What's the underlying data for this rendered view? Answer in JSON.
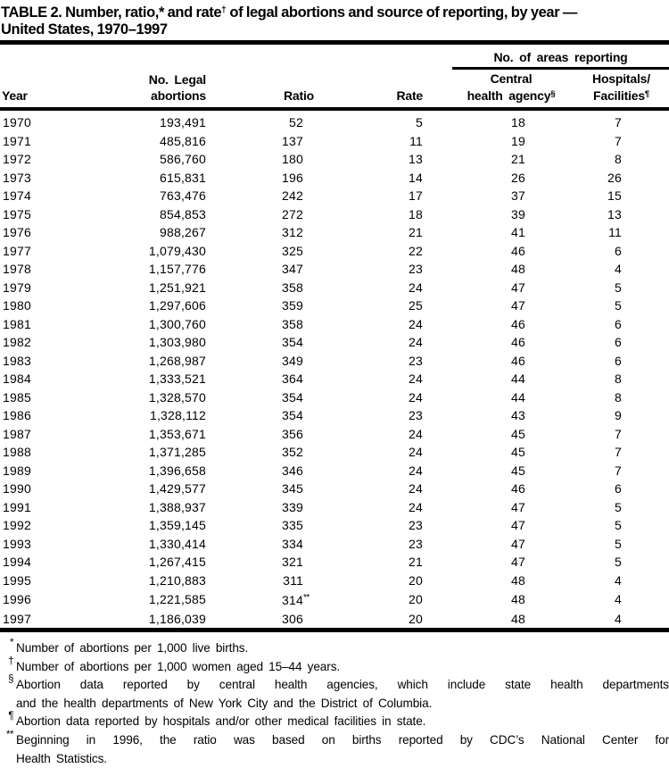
{
  "colors": {
    "text": "#000000",
    "background": "#ffffff",
    "rule": "#000000"
  },
  "title": {
    "part1": "TABLE 2. Number, ratio,* and rate",
    "part1_sup": "†",
    "part2": " of legal abortions and source of reporting, by year —",
    "line2": "United States, 1970–1997"
  },
  "table": {
    "spanner": "No. of areas reporting",
    "headers": {
      "year": "Year",
      "abortions": [
        "No. Legal",
        "abortions"
      ],
      "ratio": "Ratio",
      "rate": "Rate",
      "central": [
        "Central",
        "health agency"
      ],
      "central_sup": "§",
      "hospitals": [
        "Hospitals/",
        "Facilities"
      ],
      "hospitals_sup": "¶"
    },
    "rows": [
      {
        "year": "1970",
        "abortions": "193,491",
        "ratio": "52",
        "rate": "5",
        "central": "18",
        "hospitals": "7"
      },
      {
        "year": "1971",
        "abortions": "485,816",
        "ratio": "137",
        "rate": "11",
        "central": "19",
        "hospitals": "7"
      },
      {
        "year": "1972",
        "abortions": "586,760",
        "ratio": "180",
        "rate": "13",
        "central": "21",
        "hospitals": "8"
      },
      {
        "year": "1973",
        "abortions": "615,831",
        "ratio": "196",
        "rate": "14",
        "central": "26",
        "hospitals": "26"
      },
      {
        "year": "1974",
        "abortions": "763,476",
        "ratio": "242",
        "rate": "17",
        "central": "37",
        "hospitals": "15"
      },
      {
        "year": "1975",
        "abortions": "854,853",
        "ratio": "272",
        "rate": "18",
        "central": "39",
        "hospitals": "13"
      },
      {
        "year": "1976",
        "abortions": "988,267",
        "ratio": "312",
        "rate": "21",
        "central": "41",
        "hospitals": "11"
      },
      {
        "year": "1977",
        "abortions": "1,079,430",
        "ratio": "325",
        "rate": "22",
        "central": "46",
        "hospitals": "6"
      },
      {
        "year": "1978",
        "abortions": "1,157,776",
        "ratio": "347",
        "rate": "23",
        "central": "48",
        "hospitals": "4"
      },
      {
        "year": "1979",
        "abortions": "1,251,921",
        "ratio": "358",
        "rate": "24",
        "central": "47",
        "hospitals": "5"
      },
      {
        "year": "1980",
        "abortions": "1,297,606",
        "ratio": "359",
        "rate": "25",
        "central": "47",
        "hospitals": "5"
      },
      {
        "year": "1981",
        "abortions": "1,300,760",
        "ratio": "358",
        "rate": "24",
        "central": "46",
        "hospitals": "6"
      },
      {
        "year": "1982",
        "abortions": "1,303,980",
        "ratio": "354",
        "rate": "24",
        "central": "46",
        "hospitals": "6"
      },
      {
        "year": "1983",
        "abortions": "1,268,987",
        "ratio": "349",
        "rate": "23",
        "central": "46",
        "hospitals": "6"
      },
      {
        "year": "1984",
        "abortions": "1,333,521",
        "ratio": "364",
        "rate": "24",
        "central": "44",
        "hospitals": "8"
      },
      {
        "year": "1985",
        "abortions": "1,328,570",
        "ratio": "354",
        "rate": "24",
        "central": "44",
        "hospitals": "8"
      },
      {
        "year": "1986",
        "abortions": "1,328,112",
        "ratio": "354",
        "rate": "23",
        "central": "43",
        "hospitals": "9"
      },
      {
        "year": "1987",
        "abortions": "1,353,671",
        "ratio": "356",
        "rate": "24",
        "central": "45",
        "hospitals": "7"
      },
      {
        "year": "1988",
        "abortions": "1,371,285",
        "ratio": "352",
        "rate": "24",
        "central": "45",
        "hospitals": "7"
      },
      {
        "year": "1989",
        "abortions": "1,396,658",
        "ratio": "346",
        "rate": "24",
        "central": "45",
        "hospitals": "7"
      },
      {
        "year": "1990",
        "abortions": "1,429,577",
        "ratio": "345",
        "rate": "24",
        "central": "46",
        "hospitals": "6"
      },
      {
        "year": "1991",
        "abortions": "1,388,937",
        "ratio": "339",
        "rate": "24",
        "central": "47",
        "hospitals": "5"
      },
      {
        "year": "1992",
        "abortions": "1,359,145",
        "ratio": "335",
        "rate": "23",
        "central": "47",
        "hospitals": "5"
      },
      {
        "year": "1993",
        "abortions": "1,330,414",
        "ratio": "334",
        "rate": "23",
        "central": "47",
        "hospitals": "5"
      },
      {
        "year": "1994",
        "abortions": "1,267,415",
        "ratio": "321",
        "rate": "21",
        "central": "47",
        "hospitals": "5"
      },
      {
        "year": "1995",
        "abortions": "1,210,883",
        "ratio": "311",
        "rate": "20",
        "central": "48",
        "hospitals": "4"
      },
      {
        "year": "1996",
        "abortions": "1,221,585",
        "ratio": "314",
        "ratio_sup": "**",
        "rate": "20",
        "central": "48",
        "hospitals": "4"
      },
      {
        "year": "1997",
        "abortions": "1,186,039",
        "ratio": "306",
        "rate": "20",
        "central": "48",
        "hospitals": "4"
      }
    ]
  },
  "footnotes": [
    {
      "marker": "*",
      "lines": [
        "Number of abortions per 1,000 live births."
      ]
    },
    {
      "marker": "†",
      "lines": [
        "Number of abortions per 1,000 women aged 15–44 years."
      ]
    },
    {
      "marker": "§",
      "lines": [
        "Abortion data reported by central health agencies, which include state health departments",
        "and the health departments of New York City and the District of Columbia."
      ]
    },
    {
      "marker": "¶",
      "lines": [
        "Abortion data reported by hospitals and/or other medical facilities in state."
      ]
    },
    {
      "marker": "**",
      "lines": [
        "Beginning in 1996, the ratio was based on births reported by CDC’s National Center for",
        "Health Statistics."
      ]
    }
  ]
}
